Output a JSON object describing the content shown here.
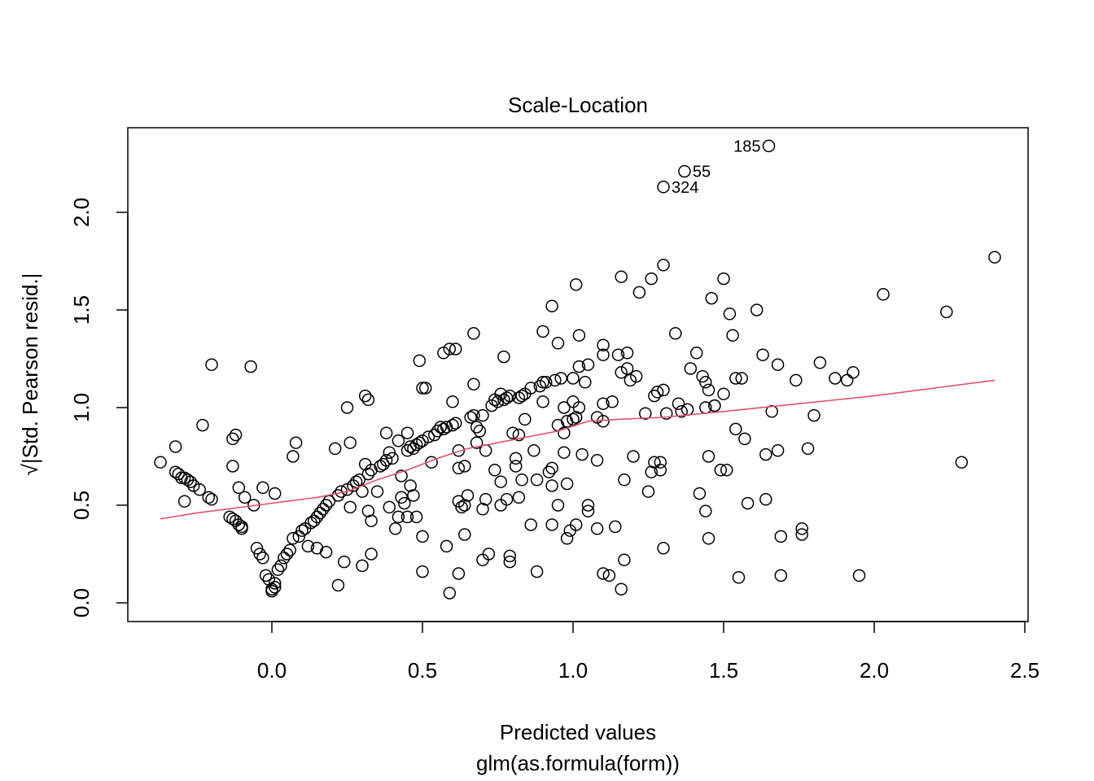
{
  "chart_data": {
    "type": "scatter",
    "title": "Scale-Location",
    "xlabel": "Predicted values",
    "xsublabel": "glm(as.formula(form))",
    "ylabel": "√|Std. Pearson resid.|",
    "xlim": [
      -0.45,
      2.5
    ],
    "ylim": [
      -0.1,
      2.4
    ],
    "xticks": [
      0.0,
      0.5,
      1.0,
      1.5,
      2.0,
      2.5
    ],
    "xtick_labels": [
      "0.0",
      "0.5",
      "1.0",
      "1.5",
      "2.0",
      "2.5"
    ],
    "yticks": [
      0.0,
      0.5,
      1.0,
      1.5,
      2.0
    ],
    "ytick_labels": [
      "0.0",
      "0.5",
      "1.0",
      "1.5",
      "2.0"
    ],
    "grid": false,
    "smooth_color": "#df536b",
    "point_color": "#000000",
    "labeled_points": [
      {
        "label": "185",
        "x": 1.65,
        "y": 2.34
      },
      {
        "label": "55",
        "x": 1.37,
        "y": 2.21
      },
      {
        "label": "324",
        "x": 1.3,
        "y": 2.13
      }
    ],
    "points": [
      [
        -0.37,
        0.72
      ],
      [
        -0.32,
        0.8
      ],
      [
        -0.32,
        0.67
      ],
      [
        -0.31,
        0.66
      ],
      [
        -0.3,
        0.64
      ],
      [
        -0.29,
        0.64
      ],
      [
        -0.28,
        0.63
      ],
      [
        -0.27,
        0.62
      ],
      [
        -0.26,
        0.6
      ],
      [
        -0.24,
        0.58
      ],
      [
        -0.23,
        0.91
      ],
      [
        -0.21,
        0.54
      ],
      [
        -0.2,
        0.53
      ],
      [
        -0.2,
        1.22
      ],
      [
        -0.29,
        0.52
      ],
      [
        -0.14,
        0.44
      ],
      [
        -0.13,
        0.43
      ],
      [
        -0.13,
        0.84
      ],
      [
        -0.12,
        0.86
      ],
      [
        -0.12,
        0.42
      ],
      [
        -0.11,
        0.4
      ],
      [
        -0.1,
        0.39
      ],
      [
        -0.1,
        0.38
      ],
      [
        -0.11,
        0.59
      ],
      [
        -0.13,
        0.7
      ],
      [
        -0.09,
        0.54
      ],
      [
        -0.07,
        1.21
      ],
      [
        -0.06,
        0.5
      ],
      [
        -0.05,
        0.28
      ],
      [
        -0.04,
        0.25
      ],
      [
        -0.03,
        0.23
      ],
      [
        -0.03,
        0.59
      ],
      [
        -0.02,
        0.14
      ],
      [
        -0.01,
        0.12
      ],
      [
        0.0,
        0.07
      ],
      [
        0.0,
        0.06
      ],
      [
        0.0,
        0.06
      ],
      [
        0.01,
        0.08
      ],
      [
        0.01,
        0.1
      ],
      [
        0.01,
        0.56
      ],
      [
        0.02,
        0.17
      ],
      [
        0.03,
        0.19
      ],
      [
        0.04,
        0.23
      ],
      [
        0.05,
        0.25
      ],
      [
        0.06,
        0.27
      ],
      [
        0.07,
        0.33
      ],
      [
        0.07,
        0.75
      ],
      [
        0.08,
        0.82
      ],
      [
        0.09,
        0.34
      ],
      [
        0.1,
        0.37
      ],
      [
        0.11,
        0.38
      ],
      [
        0.12,
        0.29
      ],
      [
        0.13,
        0.41
      ],
      [
        0.14,
        0.42
      ],
      [
        0.15,
        0.44
      ],
      [
        0.15,
        0.28
      ],
      [
        0.16,
        0.46
      ],
      [
        0.17,
        0.48
      ],
      [
        0.18,
        0.5
      ],
      [
        0.19,
        0.52
      ],
      [
        0.18,
        0.26
      ],
      [
        0.21,
        0.79
      ],
      [
        0.22,
        0.55
      ],
      [
        0.22,
        0.09
      ],
      [
        0.23,
        0.57
      ],
      [
        0.24,
        0.21
      ],
      [
        0.25,
        0.58
      ],
      [
        0.25,
        1.0
      ],
      [
        0.26,
        0.82
      ],
      [
        0.26,
        0.49
      ],
      [
        0.27,
        0.6
      ],
      [
        0.28,
        0.62
      ],
      [
        0.29,
        0.63
      ],
      [
        0.3,
        0.57
      ],
      [
        0.31,
        1.06
      ],
      [
        0.32,
        1.04
      ],
      [
        0.32,
        0.66
      ],
      [
        0.33,
        0.68
      ],
      [
        0.31,
        0.71
      ],
      [
        0.32,
        0.47
      ],
      [
        0.33,
        0.42
      ],
      [
        0.33,
        0.25
      ],
      [
        0.3,
        0.19
      ],
      [
        0.35,
        0.57
      ],
      [
        0.36,
        0.7
      ],
      [
        0.37,
        0.71
      ],
      [
        0.38,
        0.73
      ],
      [
        0.38,
        0.87
      ],
      [
        0.39,
        0.77
      ],
      [
        0.39,
        0.49
      ],
      [
        0.4,
        0.74
      ],
      [
        0.41,
        0.38
      ],
      [
        0.42,
        0.44
      ],
      [
        0.42,
        0.83
      ],
      [
        0.43,
        0.54
      ],
      [
        0.43,
        0.65
      ],
      [
        0.44,
        0.51
      ],
      [
        0.45,
        0.44
      ],
      [
        0.45,
        0.87
      ],
      [
        0.45,
        0.78
      ],
      [
        0.46,
        0.6
      ],
      [
        0.46,
        0.8
      ],
      [
        0.47,
        0.79
      ],
      [
        0.47,
        0.55
      ],
      [
        0.48,
        0.81
      ],
      [
        0.48,
        0.44
      ],
      [
        0.49,
        0.82
      ],
      [
        0.5,
        0.83
      ],
      [
        0.49,
        1.24
      ],
      [
        0.5,
        1.1
      ],
      [
        0.51,
        1.1
      ],
      [
        0.5,
        0.34
      ],
      [
        0.5,
        0.16
      ],
      [
        0.52,
        0.85
      ],
      [
        0.53,
        0.72
      ],
      [
        0.54,
        0.86
      ],
      [
        0.55,
        0.88
      ],
      [
        0.56,
        0.9
      ],
      [
        0.57,
        0.89
      ],
      [
        0.57,
        1.28
      ],
      [
        0.58,
        0.9
      ],
      [
        0.58,
        0.29
      ],
      [
        0.59,
        1.3
      ],
      [
        0.6,
        0.91
      ],
      [
        0.6,
        1.03
      ],
      [
        0.61,
        1.3
      ],
      [
        0.61,
        0.92
      ],
      [
        0.62,
        0.69
      ],
      [
        0.62,
        0.78
      ],
      [
        0.62,
        0.52
      ],
      [
        0.62,
        0.15
      ],
      [
        0.63,
        0.49
      ],
      [
        0.64,
        0.5
      ],
      [
        0.64,
        0.7
      ],
      [
        0.64,
        0.35
      ],
      [
        0.65,
        0.55
      ],
      [
        0.59,
        0.05
      ],
      [
        0.66,
        0.95
      ],
      [
        0.67,
        0.96
      ],
      [
        0.67,
        1.12
      ],
      [
        0.67,
        1.38
      ],
      [
        0.68,
        0.9
      ],
      [
        0.68,
        0.82
      ],
      [
        0.69,
        0.88
      ],
      [
        0.7,
        0.96
      ],
      [
        0.7,
        0.48
      ],
      [
        0.71,
        0.78
      ],
      [
        0.71,
        0.53
      ],
      [
        0.7,
        0.22
      ],
      [
        0.72,
        0.25
      ],
      [
        0.73,
        1.01
      ],
      [
        0.74,
        1.04
      ],
      [
        0.74,
        0.68
      ],
      [
        0.75,
        1.03
      ],
      [
        0.76,
        1.07
      ],
      [
        0.76,
        0.62
      ],
      [
        0.76,
        0.5
      ],
      [
        0.77,
        1.04
      ],
      [
        0.77,
        1.26
      ],
      [
        0.78,
        1.05
      ],
      [
        0.78,
        0.53
      ],
      [
        0.79,
        1.06
      ],
      [
        0.79,
        0.24
      ],
      [
        0.79,
        0.21
      ],
      [
        0.8,
        0.87
      ],
      [
        0.81,
        0.74
      ],
      [
        0.81,
        0.7
      ],
      [
        0.82,
        1.05
      ],
      [
        0.82,
        0.86
      ],
      [
        0.82,
        0.54
      ],
      [
        0.83,
        1.06
      ],
      [
        0.83,
        0.63
      ],
      [
        0.84,
        1.07
      ],
      [
        0.84,
        0.94
      ],
      [
        0.86,
        1.1
      ],
      [
        0.86,
        0.4
      ],
      [
        0.87,
        0.78
      ],
      [
        0.88,
        0.63
      ],
      [
        0.88,
        0.16
      ],
      [
        0.89,
        1.11
      ],
      [
        0.9,
        1.13
      ],
      [
        0.9,
        1.03
      ],
      [
        0.9,
        1.39
      ],
      [
        0.91,
        1.13
      ],
      [
        0.92,
        0.67
      ],
      [
        0.93,
        1.52
      ],
      [
        0.93,
        0.69
      ],
      [
        0.93,
        0.6
      ],
      [
        0.93,
        0.4
      ],
      [
        0.94,
        1.14
      ],
      [
        0.95,
        1.33
      ],
      [
        0.95,
        0.91
      ],
      [
        0.95,
        0.5
      ],
      [
        0.96,
        1.15
      ],
      [
        0.97,
        1.0
      ],
      [
        0.97,
        0.87
      ],
      [
        0.97,
        0.77
      ],
      [
        0.98,
        0.93
      ],
      [
        0.98,
        0.61
      ],
      [
        0.98,
        0.33
      ],
      [
        0.99,
        0.37
      ],
      [
        1.0,
        1.15
      ],
      [
        1.0,
        1.03
      ],
      [
        1.0,
        0.94
      ],
      [
        1.01,
        1.63
      ],
      [
        1.01,
        0.95
      ],
      [
        1.01,
        0.4
      ],
      [
        1.02,
        1.37
      ],
      [
        1.02,
        1.21
      ],
      [
        1.02,
        1.0
      ],
      [
        1.03,
        0.76
      ],
      [
        1.04,
        1.13
      ],
      [
        1.05,
        1.22
      ],
      [
        1.05,
        0.5
      ],
      [
        1.05,
        0.47
      ],
      [
        1.08,
        0.95
      ],
      [
        1.08,
        0.73
      ],
      [
        1.08,
        0.38
      ],
      [
        1.1,
        1.32
      ],
      [
        1.1,
        1.27
      ],
      [
        1.1,
        1.02
      ],
      [
        1.1,
        0.93
      ],
      [
        1.1,
        0.15
      ],
      [
        1.12,
        0.14
      ],
      [
        1.13,
        1.03
      ],
      [
        1.14,
        0.39
      ],
      [
        1.15,
        1.27
      ],
      [
        1.16,
        1.67
      ],
      [
        1.16,
        1.18
      ],
      [
        1.16,
        0.07
      ],
      [
        1.17,
        0.63
      ],
      [
        1.17,
        0.22
      ],
      [
        1.18,
        1.28
      ],
      [
        1.18,
        1.2
      ],
      [
        1.19,
        1.14
      ],
      [
        1.2,
        0.75
      ],
      [
        1.21,
        1.16
      ],
      [
        1.22,
        1.59
      ],
      [
        1.24,
        0.97
      ],
      [
        1.25,
        0.57
      ],
      [
        1.26,
        1.66
      ],
      [
        1.26,
        0.67
      ],
      [
        1.27,
        1.06
      ],
      [
        1.27,
        0.72
      ],
      [
        1.28,
        1.08
      ],
      [
        1.29,
        0.68
      ],
      [
        1.29,
        0.72
      ],
      [
        1.3,
        1.73
      ],
      [
        1.3,
        1.09
      ],
      [
        1.3,
        0.28
      ],
      [
        1.31,
        0.97
      ],
      [
        1.34,
        1.38
      ],
      [
        1.35,
        1.02
      ],
      [
        1.36,
        0.98
      ],
      [
        1.38,
        0.99
      ],
      [
        1.39,
        1.2
      ],
      [
        1.41,
        1.28
      ],
      [
        1.42,
        0.56
      ],
      [
        1.43,
        1.16
      ],
      [
        1.44,
        1.13
      ],
      [
        1.44,
        1.0
      ],
      [
        1.44,
        0.47
      ],
      [
        1.45,
        0.75
      ],
      [
        1.45,
        0.33
      ],
      [
        1.45,
        1.09
      ],
      [
        1.46,
        1.56
      ],
      [
        1.47,
        1.01
      ],
      [
        1.47,
        1.01
      ],
      [
        1.49,
        0.68
      ],
      [
        1.5,
        1.66
      ],
      [
        1.5,
        1.07
      ],
      [
        1.51,
        0.68
      ],
      [
        1.52,
        1.48
      ],
      [
        1.53,
        1.37
      ],
      [
        1.54,
        1.15
      ],
      [
        1.54,
        0.89
      ],
      [
        1.55,
        0.13
      ],
      [
        1.56,
        1.15
      ],
      [
        1.57,
        0.84
      ],
      [
        1.58,
        0.51
      ],
      [
        1.61,
        1.5
      ],
      [
        1.63,
        1.27
      ],
      [
        1.64,
        0.53
      ],
      [
        1.64,
        0.76
      ],
      [
        1.66,
        0.98
      ],
      [
        1.68,
        0.78
      ],
      [
        1.68,
        1.22
      ],
      [
        1.69,
        0.34
      ],
      [
        1.69,
        0.14
      ],
      [
        1.74,
        1.14
      ],
      [
        1.76,
        0.38
      ],
      [
        1.76,
        0.35
      ],
      [
        1.78,
        0.79
      ],
      [
        1.8,
        0.96
      ],
      [
        1.82,
        1.23
      ],
      [
        1.87,
        1.15
      ],
      [
        1.91,
        1.14
      ],
      [
        1.93,
        1.18
      ],
      [
        1.95,
        0.14
      ],
      [
        2.03,
        1.58
      ],
      [
        2.24,
        1.49
      ],
      [
        2.29,
        0.72
      ],
      [
        2.4,
        1.77
      ],
      [
        1.65,
        2.34
      ],
      [
        1.37,
        2.21
      ],
      [
        1.3,
        2.13
      ]
    ],
    "smooth": [
      [
        -0.37,
        0.43
      ],
      [
        -0.25,
        0.46
      ],
      [
        -0.15,
        0.48
      ],
      [
        -0.05,
        0.5
      ],
      [
        0.05,
        0.52
      ],
      [
        0.15,
        0.54
      ],
      [
        0.25,
        0.57
      ],
      [
        0.35,
        0.63
      ],
      [
        0.45,
        0.68
      ],
      [
        0.55,
        0.74
      ],
      [
        0.65,
        0.79
      ],
      [
        0.75,
        0.82
      ],
      [
        0.85,
        0.85
      ],
      [
        0.95,
        0.88
      ],
      [
        1.05,
        0.93
      ],
      [
        1.15,
        0.94
      ],
      [
        1.3,
        0.95
      ],
      [
        1.5,
        0.98
      ],
      [
        1.75,
        1.02
      ],
      [
        2.0,
        1.06
      ],
      [
        2.2,
        1.1
      ],
      [
        2.4,
        1.14
      ]
    ]
  }
}
